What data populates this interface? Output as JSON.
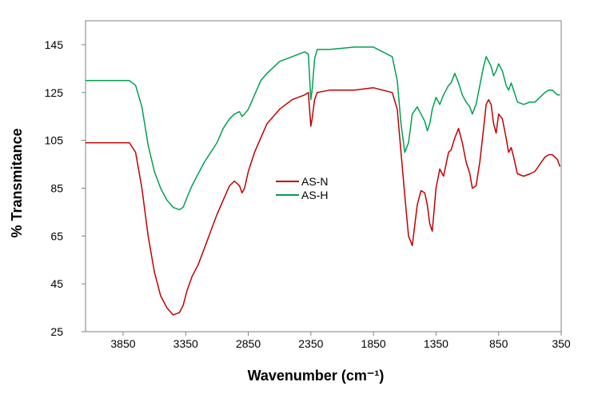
{
  "chart_data": {
    "type": "line",
    "title": "",
    "xlabel": "Wavenumber (cm⁻¹)",
    "ylabel": "% Transmitance",
    "x_reversed": true,
    "xlim": [
      4150,
      350
    ],
    "ylim": [
      25,
      155
    ],
    "x_ticks": [
      3850,
      3350,
      2850,
      2350,
      1850,
      1350,
      850,
      350
    ],
    "y_ticks": [
      25,
      45,
      65,
      85,
      105,
      125,
      145
    ],
    "x_tick_labels": [
      "3850",
      "3350",
      "2850",
      "2350",
      "1850",
      "1350",
      "850",
      "350"
    ],
    "y_tick_labels": [
      "25",
      "45",
      "65",
      "85",
      "105",
      "125",
      "145"
    ],
    "grid": false,
    "legend_position": "center",
    "series": [
      {
        "name": "AS-N",
        "color": "#c00000",
        "x": [
          4150,
          3950,
          3800,
          3750,
          3700,
          3650,
          3600,
          3550,
          3500,
          3450,
          3400,
          3370,
          3340,
          3300,
          3250,
          3200,
          3150,
          3100,
          3050,
          3000,
          2960,
          2920,
          2900,
          2880,
          2850,
          2800,
          2750,
          2700,
          2600,
          2500,
          2400,
          2370,
          2350,
          2340,
          2320,
          2300,
          2200,
          2000,
          1850,
          1700,
          1660,
          1630,
          1600,
          1570,
          1540,
          1500,
          1470,
          1440,
          1420,
          1400,
          1380,
          1350,
          1320,
          1290,
          1250,
          1230,
          1200,
          1170,
          1140,
          1110,
          1080,
          1060,
          1030,
          1000,
          970,
          950,
          930,
          910,
          890,
          870,
          850,
          820,
          790,
          770,
          750,
          730,
          700,
          650,
          600,
          560,
          520,
          480,
          450,
          420,
          400,
          380,
          360
        ],
        "y": [
          104,
          104,
          104,
          100,
          85,
          65,
          50,
          40,
          35,
          32,
          33,
          36,
          42,
          48,
          53,
          60,
          67,
          74,
          80,
          86,
          88,
          86,
          83,
          85,
          92,
          100,
          106,
          112,
          118,
          122,
          124,
          125,
          111,
          114,
          122,
          125,
          126,
          126,
          127,
          125,
          118,
          100,
          82,
          65,
          61,
          78,
          84,
          83,
          78,
          70,
          67,
          85,
          93,
          90,
          100,
          101,
          106,
          110,
          104,
          96,
          91,
          85,
          86,
          96,
          110,
          120,
          122,
          120,
          112,
          108,
          116,
          114,
          106,
          100,
          102,
          98,
          91,
          90,
          91,
          92,
          95,
          98,
          99,
          99,
          98,
          97,
          94
        ]
      },
      {
        "name": "AS-H",
        "color": "#00a050",
        "x": [
          4150,
          3950,
          3800,
          3750,
          3700,
          3650,
          3600,
          3550,
          3500,
          3450,
          3400,
          3370,
          3340,
          3300,
          3250,
          3200,
          3150,
          3100,
          3050,
          3000,
          2960,
          2920,
          2900,
          2880,
          2850,
          2800,
          2750,
          2700,
          2600,
          2500,
          2400,
          2370,
          2350,
          2340,
          2320,
          2300,
          2200,
          2000,
          1850,
          1700,
          1660,
          1630,
          1600,
          1570,
          1540,
          1500,
          1470,
          1440,
          1420,
          1400,
          1380,
          1350,
          1320,
          1290,
          1250,
          1230,
          1200,
          1170,
          1140,
          1110,
          1080,
          1060,
          1030,
          1000,
          970,
          950,
          930,
          910,
          890,
          870,
          850,
          820,
          790,
          770,
          750,
          730,
          700,
          650,
          600,
          560,
          520,
          480,
          450,
          420,
          400,
          380,
          360
        ],
        "y": [
          130,
          130,
          130,
          128,
          119,
          103,
          92,
          85,
          80,
          77,
          76,
          77,
          81,
          86,
          91,
          96,
          100,
          104,
          110,
          114,
          116,
          117,
          115,
          116,
          118,
          124,
          130,
          133,
          138,
          140,
          142,
          141,
          122,
          126,
          139,
          143,
          143,
          144,
          144,
          140,
          130,
          112,
          100,
          104,
          116,
          119,
          116,
          113,
          109,
          112,
          118,
          123,
          120,
          124,
          128,
          129,
          133,
          129,
          124,
          121,
          119,
          116,
          120,
          128,
          136,
          140,
          138,
          136,
          132,
          134,
          137,
          134,
          128,
          126,
          129,
          126,
          121,
          120,
          121,
          121,
          123,
          125,
          126,
          126,
          125,
          124,
          124
        ]
      }
    ]
  }
}
